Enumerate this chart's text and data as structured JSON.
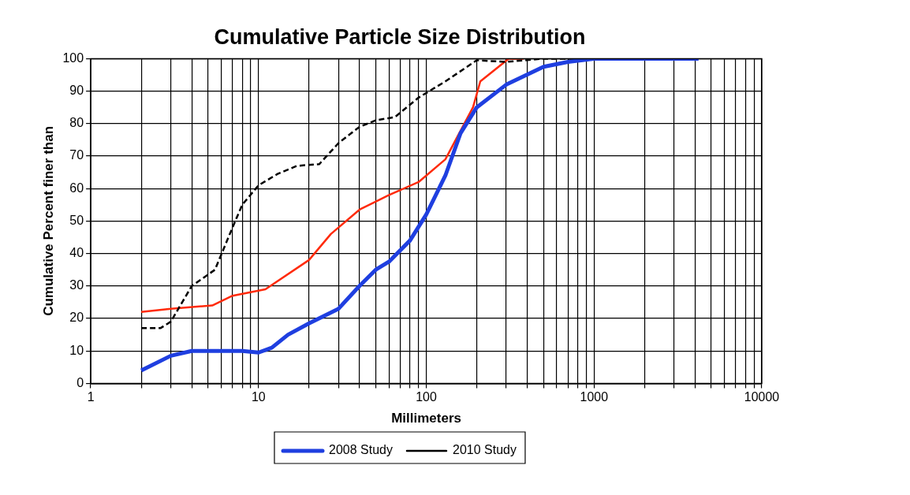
{
  "chart_data": {
    "type": "line",
    "title": "Cumulative Particle Size Distribution",
    "xlabel": "Millimeters",
    "ylabel": "Cumulative Percent finer than",
    "log": "x",
    "grid": true,
    "legend": "bottom",
    "marker": "none",
    "xlim": [
      1,
      10000
    ],
    "xticks": [
      1,
      {
        "value": 2,
        "label": null
      },
      {
        "value": 3,
        "label": null
      },
      {
        "value": 4,
        "label": null
      },
      {
        "value": 5,
        "label": null
      },
      {
        "value": 6,
        "label": null
      },
      {
        "value": 7,
        "label": null
      },
      {
        "value": 8,
        "label": null
      },
      {
        "value": 9,
        "label": null
      },
      10,
      {
        "value": 20,
        "label": null
      },
      {
        "value": 30,
        "label": null
      },
      {
        "value": 40,
        "label": null
      },
      {
        "value": 50,
        "label": null
      },
      {
        "value": 60,
        "label": null
      },
      {
        "value": 70,
        "label": null
      },
      {
        "value": 80,
        "label": null
      },
      {
        "value": 90,
        "label": null
      },
      100,
      {
        "value": 200,
        "label": null
      },
      {
        "value": 300,
        "label": null
      },
      {
        "value": 400,
        "label": null
      },
      {
        "value": 500,
        "label": null
      },
      {
        "value": 600,
        "label": null
      },
      {
        "value": 700,
        "label": null
      },
      {
        "value": 800,
        "label": null
      },
      {
        "value": 900,
        "label": null
      },
      1000,
      {
        "value": 2000,
        "label": null
      },
      {
        "value": 3000,
        "label": null
      },
      {
        "value": 4000,
        "label": null
      },
      {
        "value": 5000,
        "label": null
      },
      {
        "value": 6000,
        "label": null
      },
      {
        "value": 7000,
        "label": null
      },
      {
        "value": 8000,
        "label": null
      },
      {
        "value": 9000,
        "label": null
      },
      10000
    ],
    "ylim": [
      0,
      100
    ],
    "yticks": [
      0,
      10,
      20,
      30,
      40,
      50,
      60,
      70,
      80,
      90,
      100
    ],
    "series": [
      {
        "name": "2008 Study",
        "color": "#1f3fe0",
        "line_style": "solid",
        "x": [
          2,
          3,
          4,
          6,
          8,
          10,
          12,
          15,
          20,
          30,
          40,
          50,
          60,
          80,
          100,
          130,
          160,
          200,
          300,
          500,
          700,
          1000,
          4200
        ],
        "values": [
          4,
          8.5,
          10,
          10,
          10,
          9.5,
          11,
          15,
          18.5,
          23,
          30,
          35,
          37.5,
          44,
          52,
          64,
          77,
          85,
          92,
          97.5,
          99,
          100,
          100
        ]
      },
      {
        "name": "2010 Study",
        "color": "#000000",
        "line_style": "dashed",
        "x": [
          2,
          2.6,
          3,
          4,
          5.5,
          7,
          8,
          10,
          13,
          17,
          23,
          30,
          40,
          50,
          65,
          90,
          130,
          200,
          300,
          500,
          4000
        ],
        "values": [
          17,
          17,
          19,
          30,
          35,
          48,
          55,
          61,
          64.5,
          67,
          67.5,
          74,
          79,
          81,
          82,
          88,
          93,
          99.5,
          99,
          100,
          100
        ]
      },
      {
        "color": "#ff2a0a",
        "line_style": "solid",
        "x": [
          2,
          3,
          5.3,
          7,
          11,
          20,
          27,
          40,
          60,
          90,
          130,
          190,
          210,
          310,
          380
        ],
        "values": [
          22,
          23,
          24,
          27,
          29,
          38,
          46,
          53.5,
          58,
          62,
          69,
          85,
          93,
          100,
          100
        ]
      }
    ]
  }
}
